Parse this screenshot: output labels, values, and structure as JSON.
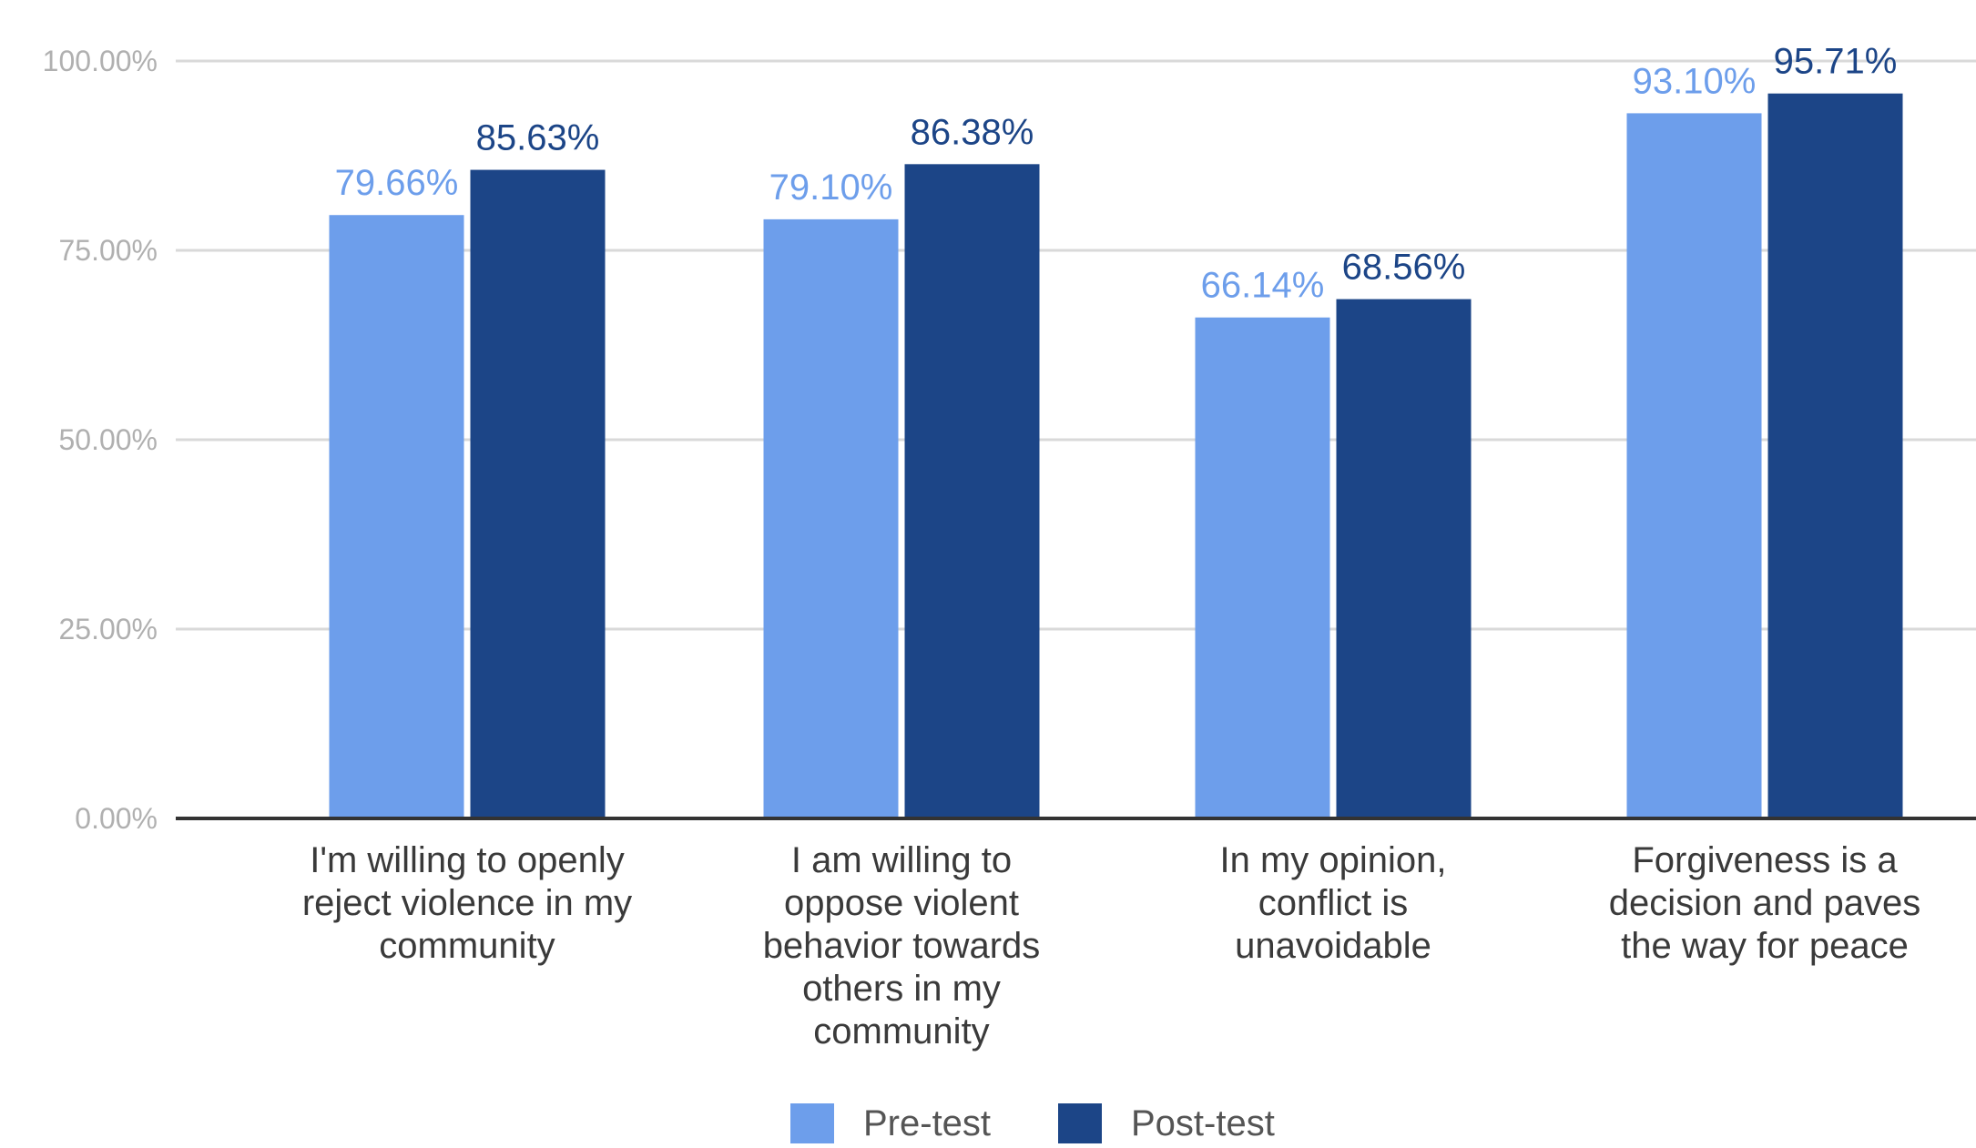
{
  "chart_data": {
    "type": "bar",
    "title": "",
    "xlabel": "",
    "ylabel": "",
    "ylim": [
      0,
      100
    ],
    "yticks": [
      "0.00%",
      "25.00%",
      "50.00%",
      "75.00%",
      "100.00%"
    ],
    "ytick_values": [
      0,
      25,
      50,
      75,
      100
    ],
    "grid": true,
    "legend_position": "bottom",
    "categories": [
      [
        "I'm willing to openly",
        "reject violence in my",
        "community"
      ],
      [
        "I am willing to",
        "oppose violent",
        "behavior towards",
        "others in my",
        "community"
      ],
      [
        "In my opinion,",
        "conflict is",
        "unavoidable"
      ],
      [
        "Forgiveness is a",
        "decision and paves",
        "the way for peace"
      ]
    ],
    "series": [
      {
        "name": "Pre-test",
        "color": "#6d9eeb",
        "values": [
          79.66,
          79.1,
          66.14,
          93.1
        ],
        "labels": [
          "79.66%",
          "79.10%",
          "66.14%",
          "93.10%"
        ]
      },
      {
        "name": "Post-test",
        "color": "#1c4587",
        "values": [
          85.63,
          86.38,
          68.56,
          95.71
        ],
        "labels": [
          "85.63%",
          "86.38%",
          "68.56%",
          "95.71%"
        ]
      }
    ],
    "colors": {
      "grid": "#d9d9d9",
      "baseline": "#333333",
      "tick_text": "#b0b0b0",
      "category_text": "#3a3a3a",
      "legend_text": "#555555"
    }
  }
}
